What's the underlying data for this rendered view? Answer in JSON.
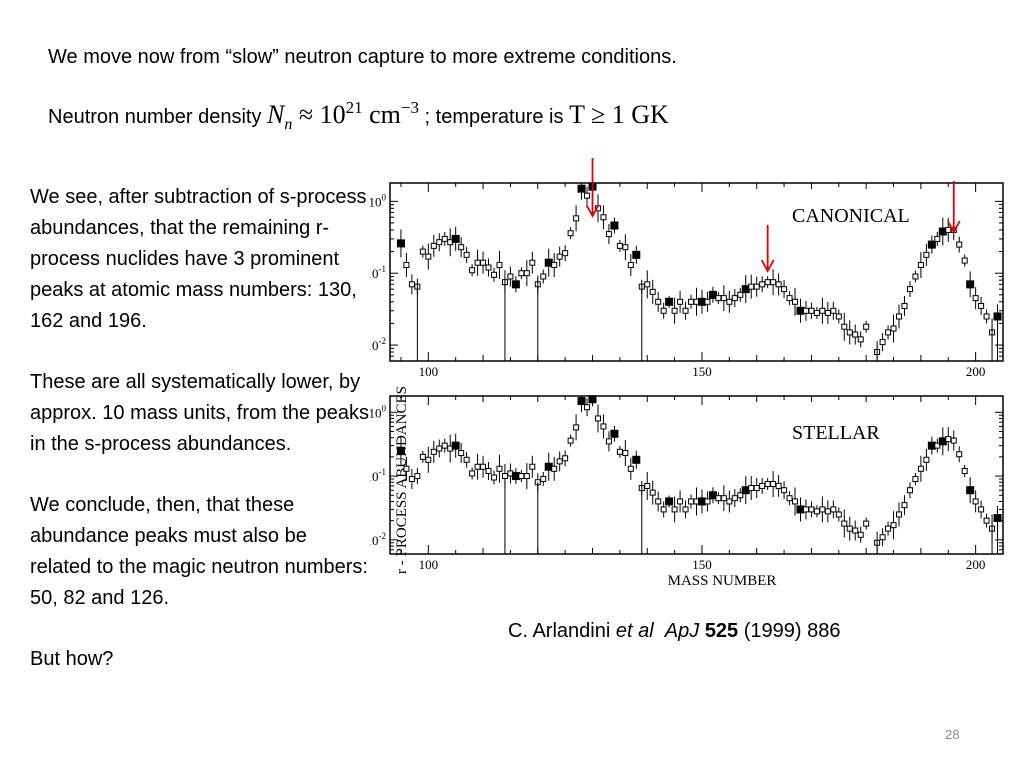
{
  "slide": {
    "line1": "We move now from “slow” neutron capture to more extreme conditions.",
    "line2": {
      "prefix": "Neutron number density ",
      "nn_sym": "N",
      "nn_sub": "n",
      "approx": " ≈ 10",
      "nn_exp": "21",
      "nn_unit": " cm",
      "nn_unit_exp": "−3",
      "middle": " ; temperature is ",
      "t_expr": "T ≥ 1 GK"
    },
    "paragraphs": [
      "We see, after subtraction of s-process abundances, that the remaining r-process nuclides have 3 prominent peaks at atomic mass numbers: 130, 162 and 196.",
      "These are all systematically lower, by approx. 10 mass units, from the peaks in the s-process abundances.",
      "We conclude, then, that these abundance peaks must also be related to the magic neutron numbers:  50, 82 and 126.",
      "But how?"
    ],
    "citation": {
      "authors": "C. Arlandini ",
      "etal": "et al",
      "journal": "ApJ",
      "volume": "525",
      "rest": " (1999) 886"
    },
    "page_number": "28"
  },
  "chart_data": {
    "type": "scatter",
    "ylabel": "r - PROCESS  ABUNDANCES",
    "xlabel": "MASS  NUMBER",
    "xlim": [
      93,
      205
    ],
    "ylim": [
      0.006,
      1.8
    ],
    "log_y": true,
    "x_ticks": [
      100,
      150,
      200
    ],
    "y_ticks": [
      {
        "value": 1,
        "mant": "10",
        "exp": "0"
      },
      {
        "value": 0.1,
        "mant": "10",
        "exp": "-1"
      },
      {
        "value": 0.01,
        "mant": "10",
        "exp": "-2"
      }
    ],
    "panels": [
      {
        "title": "CANONICAL",
        "peak_arrows": [
          130,
          162,
          196
        ],
        "points": [
          [
            95,
            0.26,
            "f"
          ],
          [
            96,
            0.13,
            "o"
          ],
          [
            97,
            0.07,
            "o"
          ],
          [
            98,
            0.065,
            "o"
          ],
          [
            99,
            0.2,
            "o"
          ],
          [
            100,
            0.17,
            "o"
          ],
          [
            101,
            0.24,
            "o"
          ],
          [
            102,
            0.27,
            "o"
          ],
          [
            103,
            0.3,
            "o"
          ],
          [
            104,
            0.27,
            "o"
          ],
          [
            105,
            0.3,
            "f"
          ],
          [
            106,
            0.23,
            "o"
          ],
          [
            107,
            0.18,
            "o"
          ],
          [
            108,
            0.11,
            "o"
          ],
          [
            109,
            0.14,
            "o"
          ],
          [
            110,
            0.14,
            "o"
          ],
          [
            111,
            0.12,
            "o"
          ],
          [
            112,
            0.095,
            "o"
          ],
          [
            113,
            0.13,
            "o"
          ],
          [
            114,
            0.075,
            "o"
          ],
          [
            115,
            0.09,
            "o"
          ],
          [
            116,
            0.07,
            "f"
          ],
          [
            117,
            0.1,
            "o"
          ],
          [
            118,
            0.1,
            "o"
          ],
          [
            119,
            0.14,
            "o"
          ],
          [
            120,
            0.07,
            "o"
          ],
          [
            121,
            0.09,
            "o"
          ],
          [
            122,
            0.14,
            "f"
          ],
          [
            123,
            0.13,
            "o"
          ],
          [
            124,
            0.17,
            "o"
          ],
          [
            125,
            0.19,
            "o"
          ],
          [
            126,
            0.36,
            "o"
          ],
          [
            127,
            0.58,
            "o"
          ],
          [
            128,
            1.5,
            "f"
          ],
          [
            129,
            1.2,
            "o"
          ],
          [
            130,
            1.6,
            "f"
          ],
          [
            131,
            0.8,
            "o"
          ],
          [
            132,
            0.6,
            "o"
          ],
          [
            133,
            0.35,
            "o"
          ],
          [
            134,
            0.46,
            "f"
          ],
          [
            135,
            0.24,
            "o"
          ],
          [
            136,
            0.23,
            "o"
          ],
          [
            137,
            0.13,
            "o"
          ],
          [
            138,
            0.18,
            "f"
          ],
          [
            139,
            0.065,
            "o"
          ],
          [
            140,
            0.07,
            "o"
          ],
          [
            141,
            0.055,
            "o"
          ],
          [
            142,
            0.04,
            "o"
          ],
          [
            143,
            0.03,
            "o"
          ],
          [
            144,
            0.04,
            "f"
          ],
          [
            145,
            0.03,
            "o"
          ],
          [
            146,
            0.04,
            "o"
          ],
          [
            147,
            0.03,
            "o"
          ],
          [
            148,
            0.04,
            "o"
          ],
          [
            149,
            0.04,
            "o"
          ],
          [
            150,
            0.04,
            "f"
          ],
          [
            151,
            0.04,
            "o"
          ],
          [
            152,
            0.05,
            "f"
          ],
          [
            153,
            0.045,
            "o"
          ],
          [
            154,
            0.045,
            "o"
          ],
          [
            155,
            0.04,
            "o"
          ],
          [
            156,
            0.045,
            "o"
          ],
          [
            157,
            0.05,
            "o"
          ],
          [
            158,
            0.06,
            "f"
          ],
          [
            159,
            0.065,
            "o"
          ],
          [
            160,
            0.065,
            "o"
          ],
          [
            161,
            0.07,
            "o"
          ],
          [
            162,
            0.075,
            "o"
          ],
          [
            163,
            0.075,
            "o"
          ],
          [
            164,
            0.07,
            "o"
          ],
          [
            165,
            0.06,
            "o"
          ],
          [
            166,
            0.045,
            "o"
          ],
          [
            167,
            0.04,
            "o"
          ],
          [
            168,
            0.03,
            "f"
          ],
          [
            169,
            0.03,
            "o"
          ],
          [
            170,
            0.03,
            "o"
          ],
          [
            171,
            0.028,
            "o"
          ],
          [
            172,
            0.03,
            "o"
          ],
          [
            173,
            0.028,
            "o"
          ],
          [
            174,
            0.03,
            "o"
          ],
          [
            175,
            0.025,
            "o"
          ],
          [
            176,
            0.018,
            "o"
          ],
          [
            177,
            0.015,
            "o"
          ],
          [
            178,
            0.014,
            "o"
          ],
          [
            179,
            0.012,
            "o"
          ],
          [
            180,
            0.018,
            "o"
          ],
          [
            182,
            0.008,
            "o"
          ],
          [
            183,
            0.011,
            "o"
          ],
          [
            184,
            0.015,
            "o"
          ],
          [
            185,
            0.017,
            "o"
          ],
          [
            186,
            0.025,
            "o"
          ],
          [
            187,
            0.035,
            "o"
          ],
          [
            188,
            0.06,
            "o"
          ],
          [
            189,
            0.09,
            "o"
          ],
          [
            190,
            0.13,
            "o"
          ],
          [
            191,
            0.18,
            "o"
          ],
          [
            192,
            0.25,
            "f"
          ],
          [
            193,
            0.3,
            "o"
          ],
          [
            194,
            0.38,
            "f"
          ],
          [
            195,
            0.4,
            "o"
          ],
          [
            196,
            0.4,
            "o"
          ],
          [
            197,
            0.25,
            "o"
          ],
          [
            198,
            0.15,
            "o"
          ],
          [
            199,
            0.07,
            "f"
          ],
          [
            200,
            0.045,
            "o"
          ],
          [
            201,
            0.035,
            "o"
          ],
          [
            202,
            0.025,
            "o"
          ],
          [
            203,
            0.015,
            "o"
          ],
          [
            204,
            0.025,
            "f"
          ]
        ]
      },
      {
        "title": "STELLAR",
        "peak_arrows": [],
        "points": [
          [
            95,
            0.25,
            "f"
          ],
          [
            96,
            0.13,
            "o"
          ],
          [
            97,
            0.09,
            "o"
          ],
          [
            98,
            0.1,
            "o"
          ],
          [
            99,
            0.2,
            "o"
          ],
          [
            100,
            0.18,
            "o"
          ],
          [
            101,
            0.24,
            "o"
          ],
          [
            102,
            0.27,
            "o"
          ],
          [
            103,
            0.3,
            "o"
          ],
          [
            104,
            0.27,
            "o"
          ],
          [
            105,
            0.3,
            "f"
          ],
          [
            106,
            0.23,
            "o"
          ],
          [
            107,
            0.18,
            "o"
          ],
          [
            108,
            0.11,
            "o"
          ],
          [
            109,
            0.14,
            "o"
          ],
          [
            110,
            0.14,
            "o"
          ],
          [
            111,
            0.12,
            "o"
          ],
          [
            112,
            0.095,
            "o"
          ],
          [
            113,
            0.13,
            "o"
          ],
          [
            114,
            0.1,
            "o"
          ],
          [
            115,
            0.11,
            "o"
          ],
          [
            116,
            0.1,
            "f"
          ],
          [
            117,
            0.1,
            "o"
          ],
          [
            118,
            0.1,
            "o"
          ],
          [
            119,
            0.14,
            "o"
          ],
          [
            120,
            0.08,
            "o"
          ],
          [
            121,
            0.09,
            "o"
          ],
          [
            122,
            0.14,
            "f"
          ],
          [
            123,
            0.13,
            "o"
          ],
          [
            124,
            0.17,
            "o"
          ],
          [
            125,
            0.19,
            "o"
          ],
          [
            126,
            0.36,
            "o"
          ],
          [
            127,
            0.58,
            "o"
          ],
          [
            128,
            1.5,
            "f"
          ],
          [
            129,
            1.2,
            "o"
          ],
          [
            130,
            1.6,
            "f"
          ],
          [
            131,
            0.8,
            "o"
          ],
          [
            132,
            0.6,
            "o"
          ],
          [
            133,
            0.35,
            "o"
          ],
          [
            134,
            0.46,
            "f"
          ],
          [
            135,
            0.24,
            "o"
          ],
          [
            136,
            0.23,
            "o"
          ],
          [
            137,
            0.13,
            "o"
          ],
          [
            138,
            0.18,
            "f"
          ],
          [
            139,
            0.065,
            "o"
          ],
          [
            140,
            0.07,
            "o"
          ],
          [
            141,
            0.055,
            "o"
          ],
          [
            142,
            0.04,
            "o"
          ],
          [
            143,
            0.03,
            "o"
          ],
          [
            144,
            0.04,
            "f"
          ],
          [
            145,
            0.03,
            "o"
          ],
          [
            146,
            0.04,
            "o"
          ],
          [
            147,
            0.03,
            "o"
          ],
          [
            148,
            0.04,
            "o"
          ],
          [
            149,
            0.04,
            "o"
          ],
          [
            150,
            0.04,
            "f"
          ],
          [
            151,
            0.04,
            "o"
          ],
          [
            152,
            0.05,
            "f"
          ],
          [
            153,
            0.045,
            "o"
          ],
          [
            154,
            0.045,
            "o"
          ],
          [
            155,
            0.04,
            "o"
          ],
          [
            156,
            0.045,
            "o"
          ],
          [
            157,
            0.05,
            "o"
          ],
          [
            158,
            0.06,
            "f"
          ],
          [
            159,
            0.065,
            "o"
          ],
          [
            160,
            0.065,
            "o"
          ],
          [
            161,
            0.07,
            "o"
          ],
          [
            162,
            0.075,
            "o"
          ],
          [
            163,
            0.075,
            "o"
          ],
          [
            164,
            0.07,
            "o"
          ],
          [
            165,
            0.06,
            "o"
          ],
          [
            166,
            0.045,
            "o"
          ],
          [
            167,
            0.04,
            "o"
          ],
          [
            168,
            0.03,
            "f"
          ],
          [
            169,
            0.03,
            "o"
          ],
          [
            170,
            0.03,
            "o"
          ],
          [
            171,
            0.028,
            "o"
          ],
          [
            172,
            0.03,
            "o"
          ],
          [
            173,
            0.028,
            "o"
          ],
          [
            174,
            0.03,
            "o"
          ],
          [
            175,
            0.025,
            "o"
          ],
          [
            176,
            0.018,
            "o"
          ],
          [
            177,
            0.015,
            "o"
          ],
          [
            178,
            0.014,
            "o"
          ],
          [
            179,
            0.012,
            "o"
          ],
          [
            180,
            0.018,
            "o"
          ],
          [
            182,
            0.009,
            "o"
          ],
          [
            183,
            0.011,
            "o"
          ],
          [
            184,
            0.015,
            "o"
          ],
          [
            185,
            0.017,
            "o"
          ],
          [
            186,
            0.025,
            "o"
          ],
          [
            187,
            0.035,
            "o"
          ],
          [
            188,
            0.06,
            "o"
          ],
          [
            189,
            0.09,
            "o"
          ],
          [
            190,
            0.13,
            "o"
          ],
          [
            191,
            0.18,
            "o"
          ],
          [
            192,
            0.3,
            "f"
          ],
          [
            193,
            0.3,
            "o"
          ],
          [
            194,
            0.35,
            "f"
          ],
          [
            195,
            0.38,
            "o"
          ],
          [
            196,
            0.36,
            "o"
          ],
          [
            197,
            0.22,
            "o"
          ],
          [
            198,
            0.12,
            "o"
          ],
          [
            199,
            0.06,
            "f"
          ],
          [
            200,
            0.04,
            "o"
          ],
          [
            201,
            0.03,
            "o"
          ],
          [
            202,
            0.02,
            "o"
          ],
          [
            203,
            0.015,
            "o"
          ],
          [
            204,
            0.022,
            "f"
          ]
        ]
      }
    ]
  }
}
